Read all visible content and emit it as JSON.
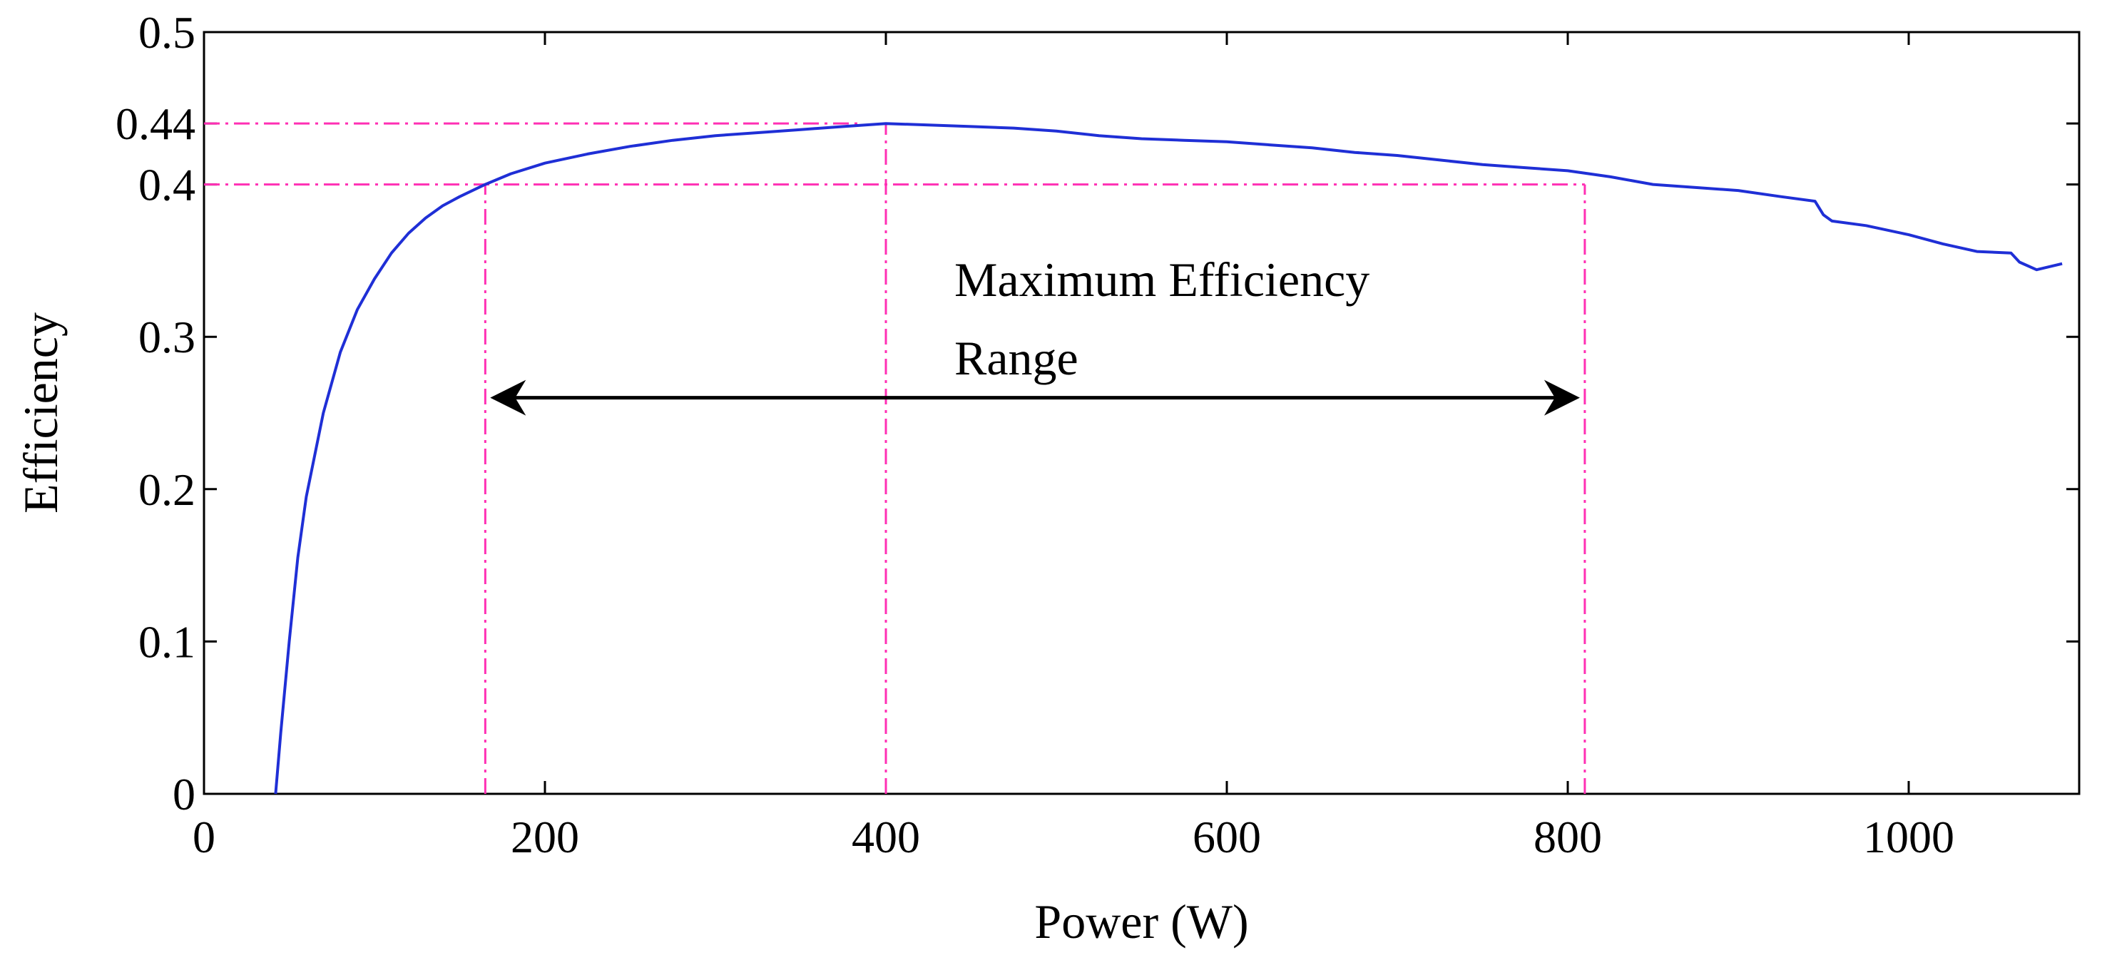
{
  "chart_data": {
    "type": "line",
    "title": "",
    "xlabel": "Power (W)",
    "ylabel": "Efficiency",
    "xlim": [
      0,
      1100
    ],
    "ylim": [
      0,
      0.5
    ],
    "xticks": [
      0,
      200,
      400,
      600,
      800,
      1000
    ],
    "yticks": [
      0,
      0.1,
      0.2,
      0.3,
      0.4,
      0.44,
      0.5
    ],
    "xtick_labels": [
      "0",
      "200",
      "400",
      "600",
      "800",
      "1000"
    ],
    "ytick_labels": [
      "0",
      "0.1",
      "0.2",
      "0.3",
      "0.4",
      "0.44",
      "0.5"
    ],
    "grid": false,
    "series": [
      {
        "name": "Efficiency",
        "color": "#1f2fd6",
        "x": [
          42,
          45,
          50,
          55,
          60,
          70,
          80,
          90,
          100,
          110,
          120,
          130,
          140,
          150,
          165,
          180,
          200,
          225,
          250,
          275,
          300,
          325,
          350,
          375,
          400,
          425,
          450,
          475,
          500,
          525,
          550,
          575,
          600,
          625,
          650,
          675,
          700,
          725,
          750,
          775,
          800,
          825,
          850,
          875,
          900,
          925,
          945,
          950,
          955,
          975,
          1000,
          1020,
          1040,
          1060,
          1065,
          1075,
          1090
        ],
        "y": [
          0.0,
          0.04,
          0.1,
          0.155,
          0.195,
          0.25,
          0.29,
          0.318,
          0.338,
          0.355,
          0.368,
          0.378,
          0.386,
          0.392,
          0.4,
          0.407,
          0.414,
          0.42,
          0.425,
          0.429,
          0.432,
          0.434,
          0.436,
          0.438,
          0.44,
          0.439,
          0.438,
          0.437,
          0.435,
          0.432,
          0.43,
          0.429,
          0.428,
          0.426,
          0.424,
          0.421,
          0.419,
          0.416,
          0.413,
          0.411,
          0.409,
          0.405,
          0.4,
          0.398,
          0.396,
          0.392,
          0.389,
          0.38,
          0.376,
          0.373,
          0.367,
          0.361,
          0.356,
          0.355,
          0.349,
          0.344,
          0.348
        ]
      }
    ],
    "reference_lines": {
      "color": "#ff2fb4",
      "horizontal": [
        {
          "y": 0.44,
          "x_from": 0,
          "x_to": 385
        },
        {
          "y": 0.4,
          "x_from": 0,
          "x_to": 810
        }
      ],
      "vertical": [
        {
          "x": 165,
          "y_from": 0,
          "y_to": 0.4
        },
        {
          "x": 400,
          "y_from": 0,
          "y_to": 0.44
        },
        {
          "x": 810,
          "y_from": 0,
          "y_to": 0.4
        }
      ]
    },
    "annotations": [
      {
        "type": "double-arrow",
        "x_from": 170,
        "x_to": 805,
        "y": 0.26,
        "text_line1": "Maximum Efficiency",
        "text_line2": "Range"
      }
    ]
  }
}
